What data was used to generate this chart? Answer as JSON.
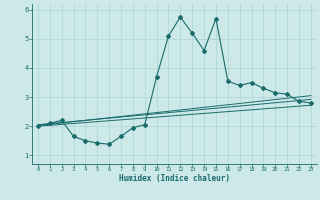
{
  "xlabel": "Humidex (Indice chaleur)",
  "background_color": "#cce8e8",
  "line_color": "#1a6b6b",
  "grid_color": "#aad4d4",
  "xlim": [
    -0.5,
    23.5
  ],
  "ylim": [
    0.7,
    6.2
  ],
  "yticks": [
    1,
    2,
    3,
    4,
    5,
    6
  ],
  "xticks": [
    0,
    1,
    2,
    3,
    4,
    5,
    6,
    7,
    8,
    9,
    10,
    11,
    12,
    13,
    14,
    15,
    16,
    17,
    18,
    19,
    20,
    21,
    22,
    23
  ],
  "main_line_x": [
    0,
    1,
    2,
    3,
    4,
    5,
    6,
    7,
    8,
    9,
    10,
    11,
    12,
    13,
    14,
    15,
    16,
    17,
    18,
    19,
    20,
    21,
    22,
    23
  ],
  "main_line_y": [
    2.0,
    2.1,
    2.2,
    1.65,
    1.5,
    1.42,
    1.38,
    1.65,
    1.95,
    2.05,
    3.7,
    5.1,
    5.75,
    5.2,
    4.6,
    5.7,
    3.55,
    3.4,
    3.5,
    3.3,
    3.15,
    3.1,
    2.85,
    2.8
  ],
  "line2_x": [
    0,
    23
  ],
  "line2_y": [
    2.02,
    3.05
  ],
  "line3_x": [
    0,
    23
  ],
  "line3_y": [
    2.05,
    2.92
  ],
  "line4_x": [
    0,
    23
  ],
  "line4_y": [
    2.0,
    2.72
  ]
}
